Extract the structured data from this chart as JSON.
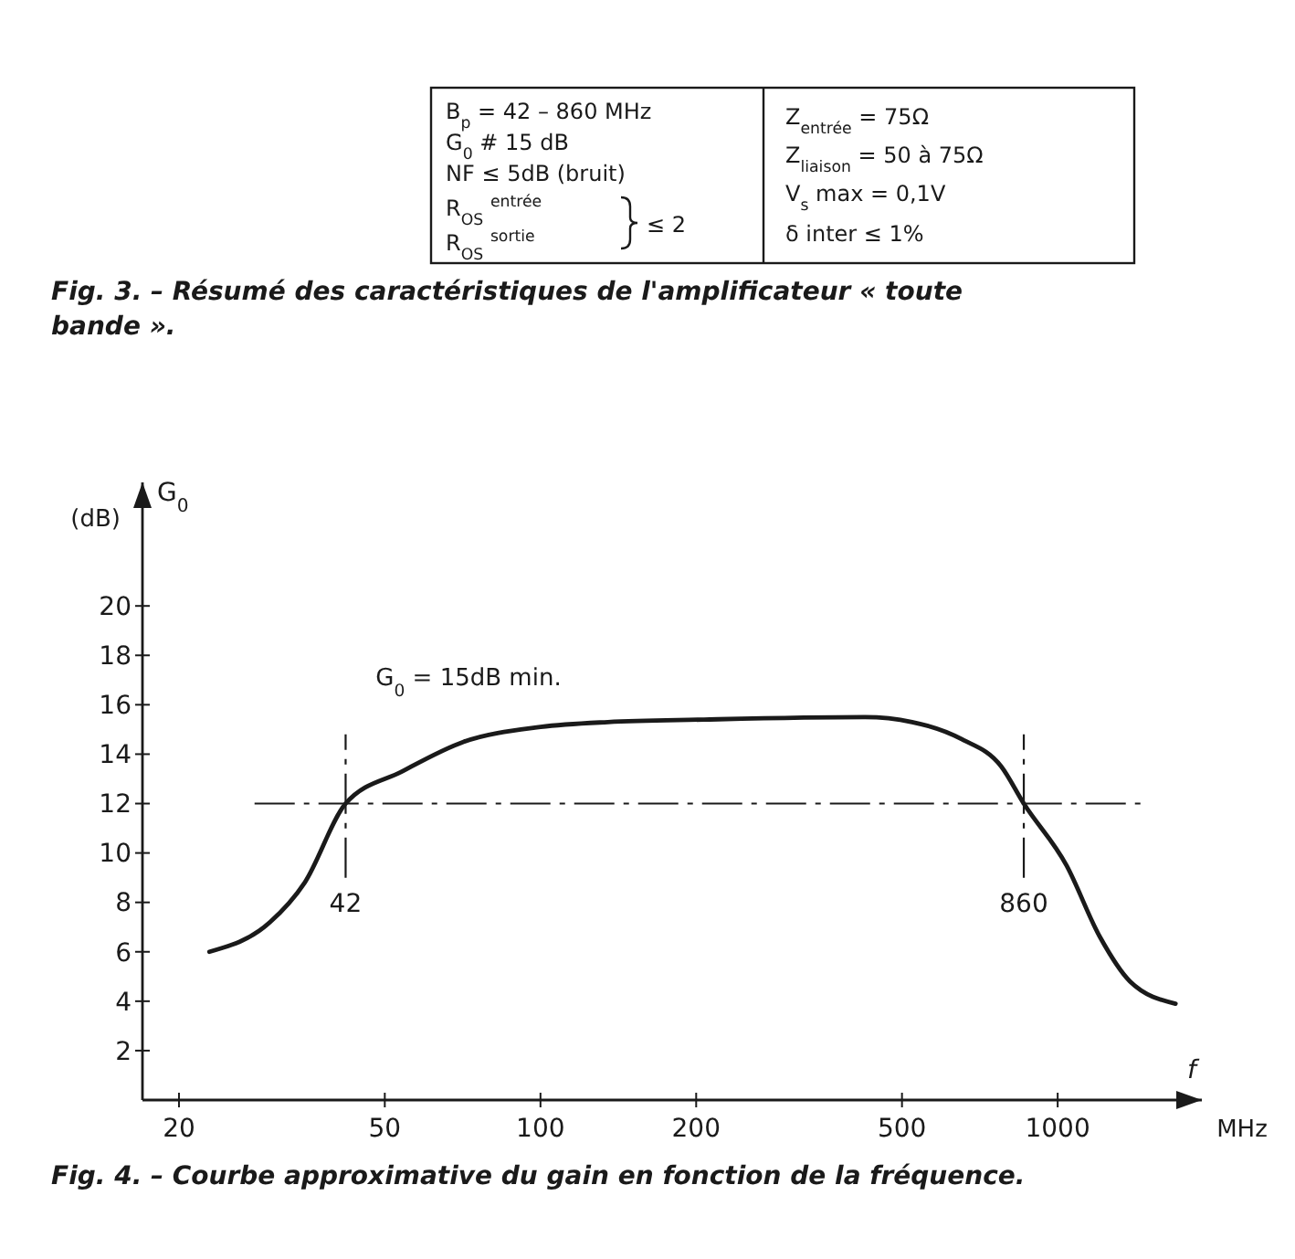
{
  "chart_data": {
    "type": "line",
    "title": "Fig. 4. – Courbe approximative du gain en fonction de la fréquence.",
    "xlabel": "f",
    "ylabel": "G$_{0}$",
    "annotations": [
      "B$_{p}$ = 42 – 860 MHz",
      "G$_{0}$ # 15 dB",
      "NF ≤ 5dB (bruit)",
      "R$_{OS}$ $^{entrée}$",
      "R$_{OS}$ $^{sortie}$",
      "≤ 2",
      "Z$_{entrée}$ = 75Ω",
      "Z$_{liaison}$ = 50 à 75Ω",
      "V$_{s}$ max = 0,1V",
      "δ inter ≤ 1%",
      "Fig. 3. – Résumé des caractéristiques de l'amplificateur « toute bande ».",
      "G$_{0}$ = 15dB min.",
      "(dB)",
      "MHz"
    ],
    "x": [
      22.9,
      30,
      35,
      42,
      54,
      71,
      100,
      135,
      207,
      424,
      523,
      653,
      778,
      860,
      1040,
      1207,
      1380,
      1690
    ],
    "series": [
      {
        "color": "#1a1a1a",
        "values": [
          6,
          7.2,
          8.8,
          12,
          13.3,
          14.5,
          15.1,
          15.3,
          15.4,
          15.5,
          15.3,
          14.6,
          13.5,
          12,
          9.5,
          6.6,
          4.8,
          3.9
        ]
      }
    ],
    "log": "x",
    "xlim": [
      17,
      1900
    ],
    "xticks": [
      20,
      50,
      100,
      200,
      500,
      1000
    ],
    "ylim": [
      0,
      25
    ],
    "yticks": [
      2,
      4,
      6,
      8,
      10,
      12,
      14,
      16,
      18,
      20
    ],
    "ref_lines": [
      {
        "axis": "y",
        "value": 12,
        "line_style": "dashed"
      },
      {
        "axis": "x",
        "value": 42,
        "label": "42",
        "line_style": "dashed"
      },
      {
        "axis": "x",
        "value": 860,
        "label": "860",
        "line_style": "dashed"
      }
    ],
    "grid": false,
    "marker": "none",
    "line_style": "solid"
  }
}
